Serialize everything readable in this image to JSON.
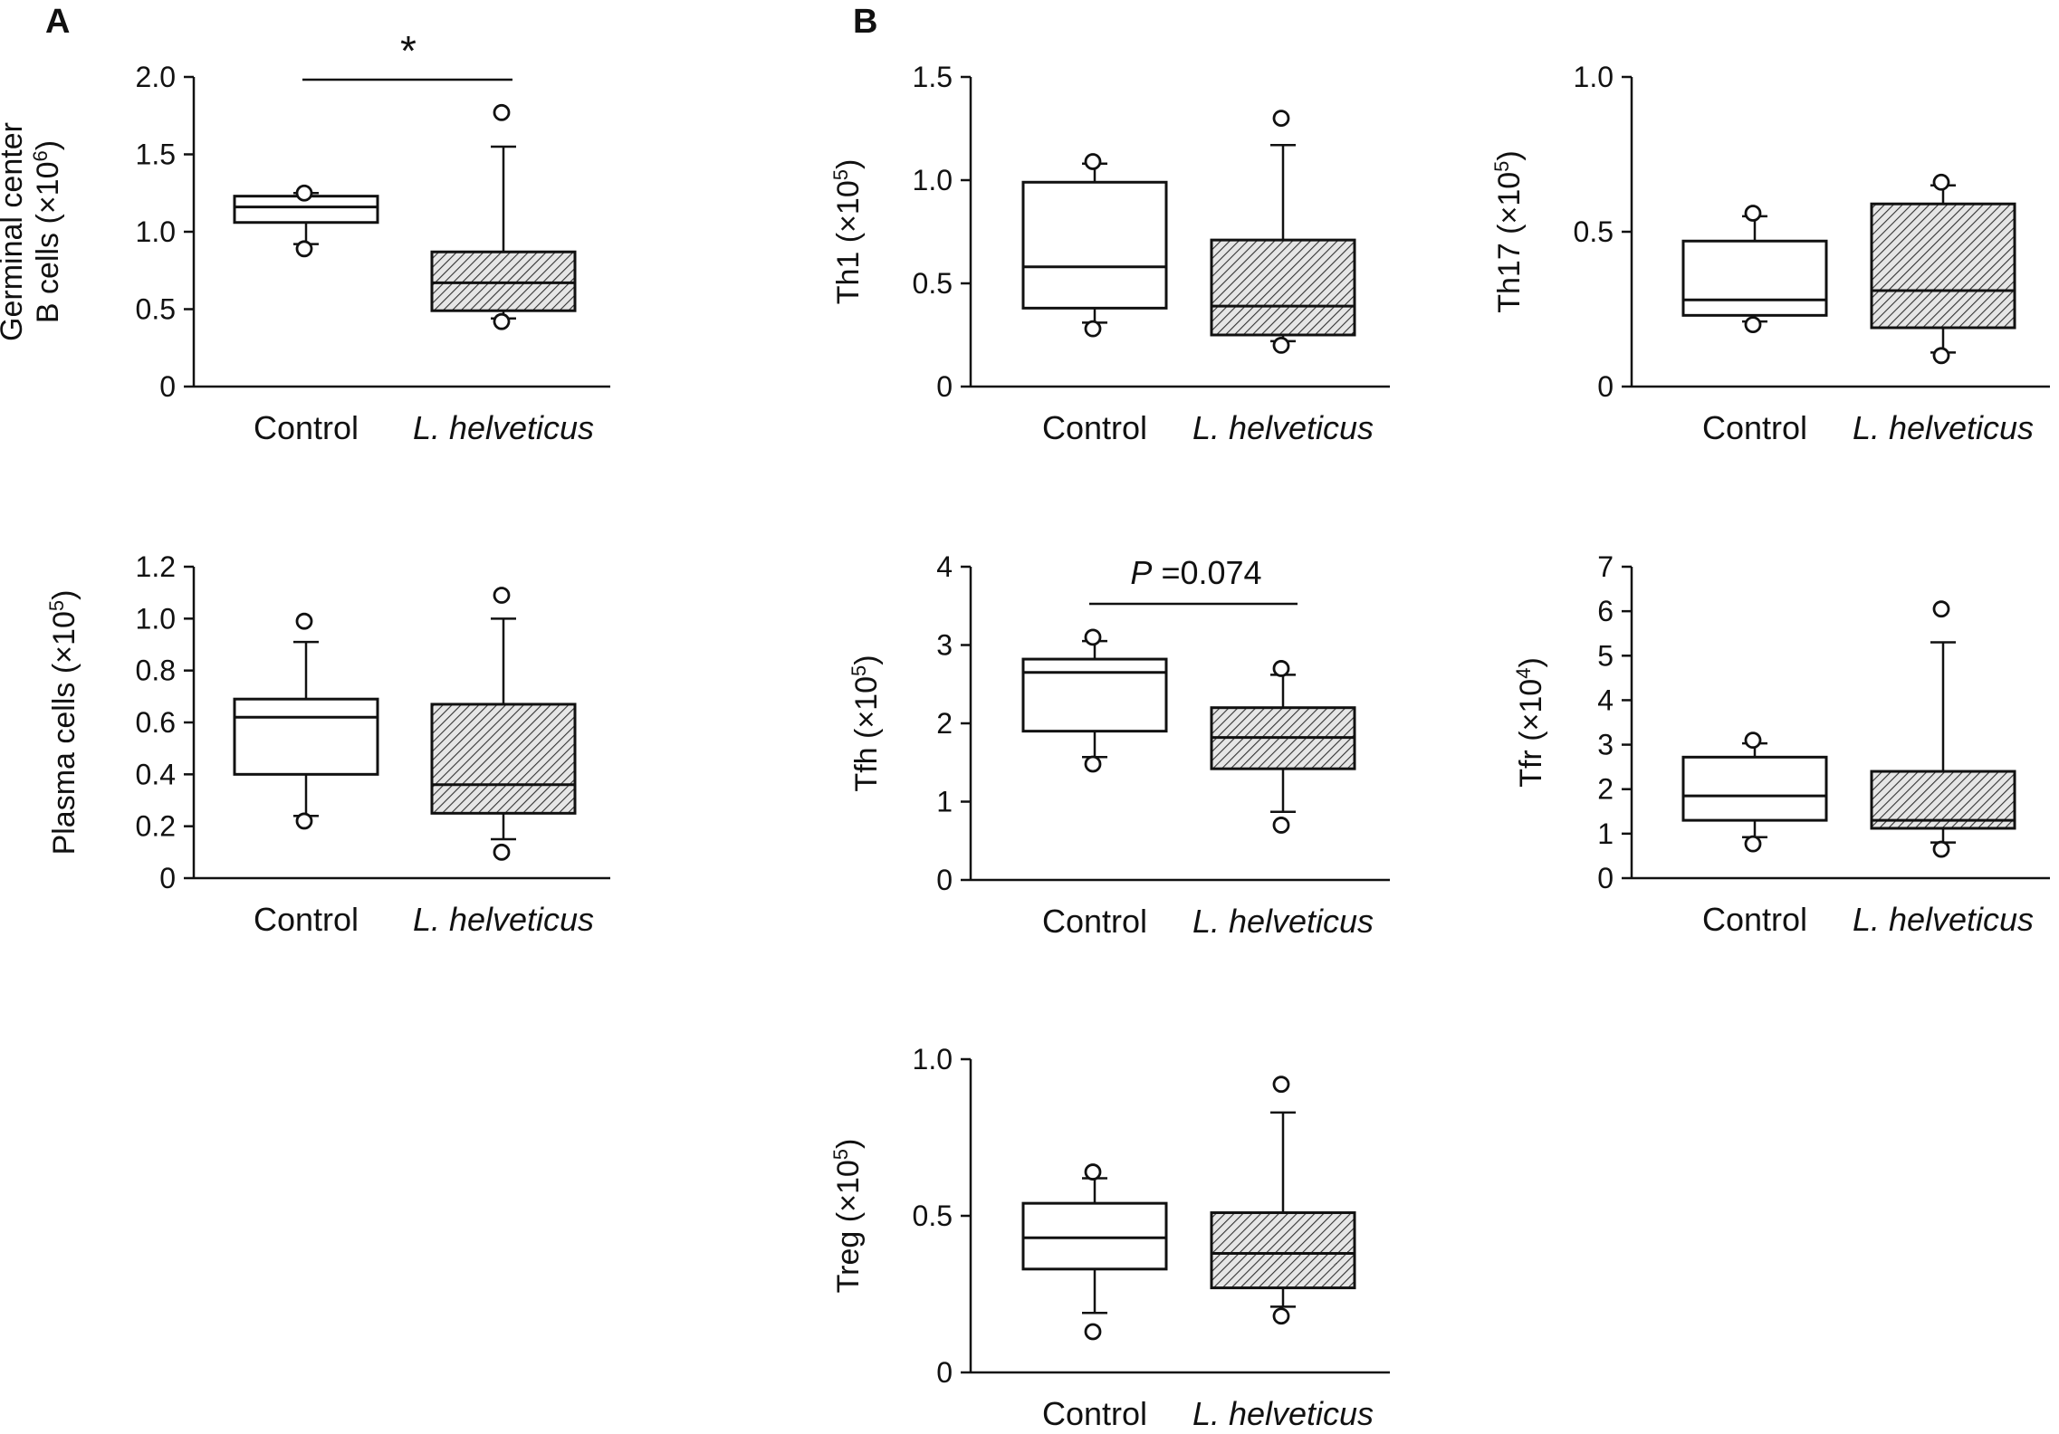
{
  "panel_labels": [
    "A",
    "B"
  ],
  "chart_data": [
    {
      "type": "boxplot",
      "panel": "A",
      "ylabel_lines": [
        "Germinal center",
        "B cells (×10",
        "6",
        ")"
      ],
      "ylim": [
        0,
        2.0
      ],
      "yticks": [
        {
          "v": 0,
          "t": "0"
        },
        {
          "v": 0.5,
          "t": "0.5"
        },
        {
          "v": 1.0,
          "t": "1.0"
        },
        {
          "v": 1.5,
          "t": "1.5"
        },
        {
          "v": 2.0,
          "t": "2.0"
        }
      ],
      "categories": [
        "Control",
        "L. helveticus"
      ],
      "boxes": [
        {
          "q1": 1.06,
          "median": 1.16,
          "q3": 1.23,
          "wlow": 0.92,
          "whigh": 1.25,
          "outliers": [
            0.89,
            1.25
          ]
        },
        {
          "q1": 0.49,
          "median": 0.67,
          "q3": 0.87,
          "wlow": 0.44,
          "whigh": 1.55,
          "outliers": [
            0.42,
            1.77
          ]
        }
      ],
      "annotation": "*"
    },
    {
      "type": "boxplot",
      "panel": "B",
      "ylabel_lines": [
        "Th1 (×10",
        "5",
        ")"
      ],
      "ylim": [
        0,
        1.5
      ],
      "yticks": [
        {
          "v": 0,
          "t": "0"
        },
        {
          "v": 0.5,
          "t": "0.5"
        },
        {
          "v": 1.0,
          "t": "1.0"
        },
        {
          "v": 1.5,
          "t": "1.5"
        }
      ],
      "categories": [
        "Control",
        "L. helveticus"
      ],
      "boxes": [
        {
          "q1": 0.38,
          "median": 0.58,
          "q3": 0.99,
          "wlow": 0.31,
          "whigh": 1.08,
          "outliers": [
            0.28,
            1.09
          ]
        },
        {
          "q1": 0.25,
          "median": 0.39,
          "q3": 0.71,
          "wlow": 0.22,
          "whigh": 1.17,
          "outliers": [
            0.2,
            1.3
          ]
        }
      ]
    },
    {
      "type": "boxplot",
      "ylabel_lines": [
        "Th17 (×10",
        "5",
        ")"
      ],
      "ylim": [
        0,
        1.0
      ],
      "yticks": [
        {
          "v": 0,
          "t": "0"
        },
        {
          "v": 0.5,
          "t": "0.5"
        },
        {
          "v": 1.0,
          "t": "1.0"
        }
      ],
      "categories": [
        "Control",
        "L. helveticus"
      ],
      "boxes": [
        {
          "q1": 0.23,
          "median": 0.28,
          "q3": 0.47,
          "wlow": 0.21,
          "whigh": 0.55,
          "outliers": [
            0.2,
            0.56
          ]
        },
        {
          "q1": 0.19,
          "median": 0.31,
          "q3": 0.59,
          "wlow": 0.11,
          "whigh": 0.65,
          "outliers": [
            0.1,
            0.66
          ]
        }
      ]
    },
    {
      "type": "boxplot",
      "ylabel_lines": [
        "Plasma cells (×10",
        "5",
        ")"
      ],
      "ylim": [
        0,
        1.2
      ],
      "yticks": [
        {
          "v": 0,
          "t": "0"
        },
        {
          "v": 0.2,
          "t": "0.2"
        },
        {
          "v": 0.4,
          "t": "0.4"
        },
        {
          "v": 0.6,
          "t": "0.6"
        },
        {
          "v": 0.8,
          "t": "0.8"
        },
        {
          "v": 1.0,
          "t": "1.0"
        },
        {
          "v": 1.2,
          "t": "1.2"
        }
      ],
      "categories": [
        "Control",
        "L. helveticus"
      ],
      "boxes": [
        {
          "q1": 0.4,
          "median": 0.62,
          "q3": 0.69,
          "wlow": 0.24,
          "whigh": 0.91,
          "outliers": [
            0.22,
            0.99
          ]
        },
        {
          "q1": 0.25,
          "median": 0.36,
          "q3": 0.67,
          "wlow": 0.15,
          "whigh": 1.0,
          "outliers": [
            0.1,
            1.09
          ]
        }
      ]
    },
    {
      "type": "boxplot",
      "ylabel_lines": [
        "Tfh (×10",
        "5",
        ")"
      ],
      "ylim": [
        0,
        4
      ],
      "yticks": [
        {
          "v": 0,
          "t": "0"
        },
        {
          "v": 1,
          "t": "1"
        },
        {
          "v": 2,
          "t": "2"
        },
        {
          "v": 3,
          "t": "3"
        },
        {
          "v": 4,
          "t": "4"
        }
      ],
      "categories": [
        "Control",
        "L. helveticus"
      ],
      "boxes": [
        {
          "q1": 1.9,
          "median": 2.65,
          "q3": 2.82,
          "wlow": 1.57,
          "whigh": 3.05,
          "outliers": [
            1.48,
            3.1
          ]
        },
        {
          "q1": 1.42,
          "median": 1.82,
          "q3": 2.2,
          "wlow": 0.87,
          "whigh": 2.62,
          "outliers": [
            0.7,
            2.7
          ]
        }
      ],
      "annotation_p": "P",
      "annotation_value": " =0.074"
    },
    {
      "type": "boxplot",
      "ylabel_lines": [
        "Tfr (×10",
        "4",
        ")"
      ],
      "ylim": [
        0,
        7
      ],
      "yticks": [
        {
          "v": 0,
          "t": "0"
        },
        {
          "v": 1,
          "t": "1"
        },
        {
          "v": 2,
          "t": "2"
        },
        {
          "v": 3,
          "t": "3"
        },
        {
          "v": 4,
          "t": "4"
        },
        {
          "v": 5,
          "t": "5"
        },
        {
          "v": 6,
          "t": "6"
        },
        {
          "v": 7,
          "t": "7"
        }
      ],
      "categories": [
        "Control",
        "L. helveticus"
      ],
      "boxes": [
        {
          "q1": 1.3,
          "median": 1.85,
          "q3": 2.72,
          "wlow": 0.92,
          "whigh": 3.03,
          "outliers": [
            0.77,
            3.1
          ]
        },
        {
          "q1": 1.12,
          "median": 1.3,
          "q3": 2.4,
          "wlow": 0.8,
          "whigh": 5.3,
          "outliers": [
            0.65,
            6.05
          ]
        }
      ]
    },
    {
      "type": "boxplot",
      "ylabel_lines": [
        "Treg (×10",
        "5",
        ")"
      ],
      "ylim": [
        0,
        1.0
      ],
      "yticks": [
        {
          "v": 0,
          "t": "0"
        },
        {
          "v": 0.5,
          "t": "0.5"
        },
        {
          "v": 1.0,
          "t": "1.0"
        }
      ],
      "categories": [
        "Control",
        "L. helveticus"
      ],
      "boxes": [
        {
          "q1": 0.33,
          "median": 0.43,
          "q3": 0.54,
          "wlow": 0.19,
          "whigh": 0.62,
          "outliers": [
            0.13,
            0.64
          ]
        },
        {
          "q1": 0.27,
          "median": 0.38,
          "q3": 0.51,
          "wlow": 0.21,
          "whigh": 0.83,
          "outliers": [
            0.18,
            0.92
          ]
        }
      ]
    }
  ]
}
